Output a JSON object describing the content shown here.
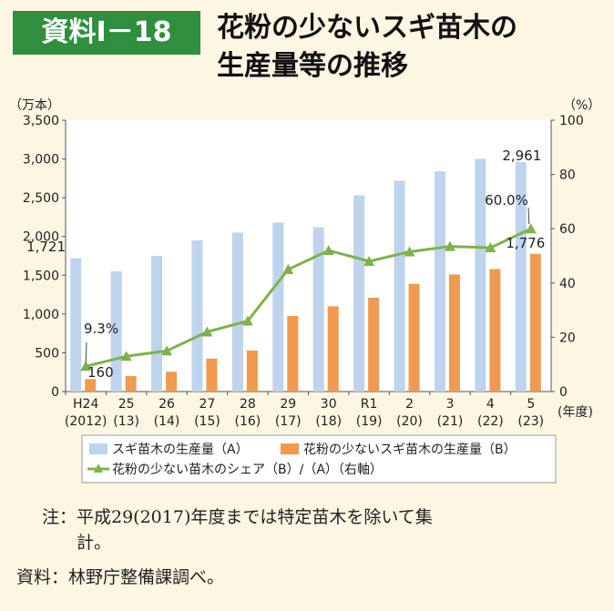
{
  "header": {
    "badge": "資料Ⅰ－18",
    "title_line1": "花粉の少ないスギ苗木の",
    "title_line2": "生産量等の推移"
  },
  "chart_data": {
    "type": "bar",
    "left_unit": "（万本）",
    "right_unit": "（%）",
    "x_unit": "(年度)",
    "categories": [
      "H24",
      "25",
      "26",
      "27",
      "28",
      "29",
      "30",
      "R1",
      "2",
      "3",
      "4",
      "5"
    ],
    "categories_sub": [
      "(2012)",
      "(13)",
      "(14)",
      "(15)",
      "(16)",
      "(17)",
      "(18)",
      "(19)",
      "(20)",
      "(21)",
      "(22)",
      "(23)"
    ],
    "ylim": [
      0,
      3500
    ],
    "yticks": [
      "0",
      "500",
      "1,000",
      "1,500",
      "2,000",
      "2,500",
      "3,000",
      "3,500"
    ],
    "y2lim": [
      0,
      100
    ],
    "y2ticks": [
      "0",
      "20",
      "40",
      "60",
      "80",
      "100"
    ],
    "series": [
      {
        "name": "スギ苗木の生産量（A）",
        "kind": "bar",
        "color": "#bfd3ec",
        "values": [
          1721,
          1550,
          1750,
          1950,
          2050,
          2180,
          2120,
          2530,
          2720,
          2840,
          3000,
          2961
        ]
      },
      {
        "name": "花粉の少ないスギ苗木の生産量（B）",
        "kind": "bar",
        "color": "#ef9a4f",
        "values": [
          160,
          200,
          255,
          425,
          530,
          975,
          1100,
          1210,
          1390,
          1510,
          1580,
          1776
        ]
      },
      {
        "name": "花粉の少ない苗木のシェア（B）/（A）（右軸）",
        "kind": "line",
        "axis": "right",
        "color": "#7fb24a",
        "values": [
          9.3,
          13,
          15,
          22,
          26,
          45,
          52,
          48,
          51.5,
          53.5,
          53,
          60.0
        ]
      }
    ],
    "annotations": {
      "a_first": "1,721",
      "a_last": "2,961",
      "b_first": "160",
      "b_last": "1,776",
      "share_first": "9.3%",
      "share_last": "60.0%"
    },
    "legend": "bottom",
    "grid": false
  },
  "notes": {
    "line1": "注：平成29(2017)年度までは特定苗木を除いて集",
    "line2": "計。",
    "line3": "資料：林野庁整備課調べ。"
  }
}
